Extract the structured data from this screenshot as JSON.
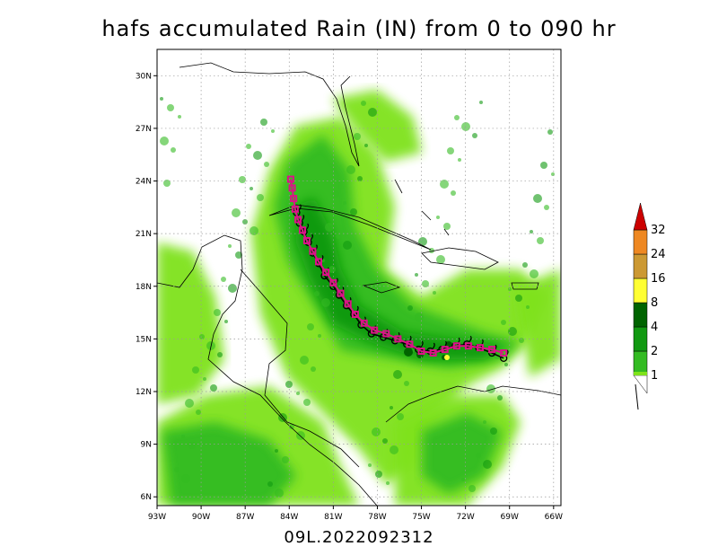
{
  "title": "hafs accumulated Rain (IN) from 0 to 090 hr",
  "footer": "09L.2022092312",
  "map": {
    "lon_ticks": [
      "93W",
      "90W",
      "87W",
      "84W",
      "81W",
      "78W",
      "75W",
      "72W",
      "69W",
      "66W"
    ],
    "lat_ticks": [
      "30N",
      "27N",
      "24N",
      "21N",
      "18N",
      "15N",
      "12N",
      "9N",
      "6N"
    ],
    "lon_range": [
      -93,
      -65.5
    ],
    "lat_range": [
      5.5,
      31.5
    ],
    "grid": true
  },
  "colorbar": {
    "labels": [
      "1",
      "2",
      "4",
      "8",
      "16",
      "24",
      "32"
    ],
    "colors": [
      "#7fe21a",
      "#33bb22",
      "#119911",
      "#006400",
      "#ffff33",
      "#cc9933",
      "#ee8822",
      "#cc0000"
    ]
  },
  "track": {
    "forecast_color": "#dd1188",
    "observed_color": "#000000",
    "forecast_points": [
      [
        -69.4,
        14.2
      ],
      [
        -70.2,
        14.4
      ],
      [
        -71.0,
        14.5
      ],
      [
        -71.8,
        14.6
      ],
      [
        -72.6,
        14.6
      ],
      [
        -73.4,
        14.4
      ],
      [
        -74.2,
        14.2
      ],
      [
        -75.0,
        14.3
      ],
      [
        -75.8,
        14.7
      ],
      [
        -76.6,
        15.0
      ],
      [
        -77.4,
        15.3
      ],
      [
        -78.2,
        15.5
      ],
      [
        -78.9,
        15.9
      ],
      [
        -79.5,
        16.4
      ],
      [
        -80.0,
        17.0
      ],
      [
        -80.5,
        17.6
      ],
      [
        -81.0,
        18.2
      ],
      [
        -81.5,
        18.8
      ],
      [
        -82.0,
        19.4
      ],
      [
        -82.4,
        20.0
      ],
      [
        -82.8,
        20.6
      ],
      [
        -83.1,
        21.2
      ],
      [
        -83.4,
        21.8
      ],
      [
        -83.6,
        22.4
      ],
      [
        -83.7,
        23.0
      ],
      [
        -83.8,
        23.6
      ],
      [
        -83.9,
        24.1
      ]
    ],
    "observed_points": [
      [
        -69.4,
        13.9
      ],
      [
        -70.2,
        14.2
      ],
      [
        -71.1,
        14.5
      ],
      [
        -71.9,
        14.7
      ],
      [
        -72.7,
        14.6
      ],
      [
        -73.6,
        14.4
      ],
      [
        -74.4,
        14.3
      ],
      [
        -75.2,
        14.4
      ],
      [
        -76.0,
        14.7
      ],
      [
        -76.8,
        14.9
      ],
      [
        -77.6,
        15.1
      ],
      [
        -78.4,
        15.3
      ],
      [
        -79.1,
        15.8
      ],
      [
        -79.6,
        16.4
      ],
      [
        -80.1,
        16.9
      ],
      [
        -80.6,
        17.5
      ],
      [
        -81.0,
        18.0
      ],
      [
        -81.6,
        18.6
      ],
      [
        -82.0,
        19.3
      ],
      [
        -82.4,
        19.9
      ],
      [
        -82.7,
        20.5
      ],
      [
        -83.0,
        21.1
      ],
      [
        -83.3,
        21.6
      ],
      [
        -83.5,
        22.2
      ]
    ]
  }
}
